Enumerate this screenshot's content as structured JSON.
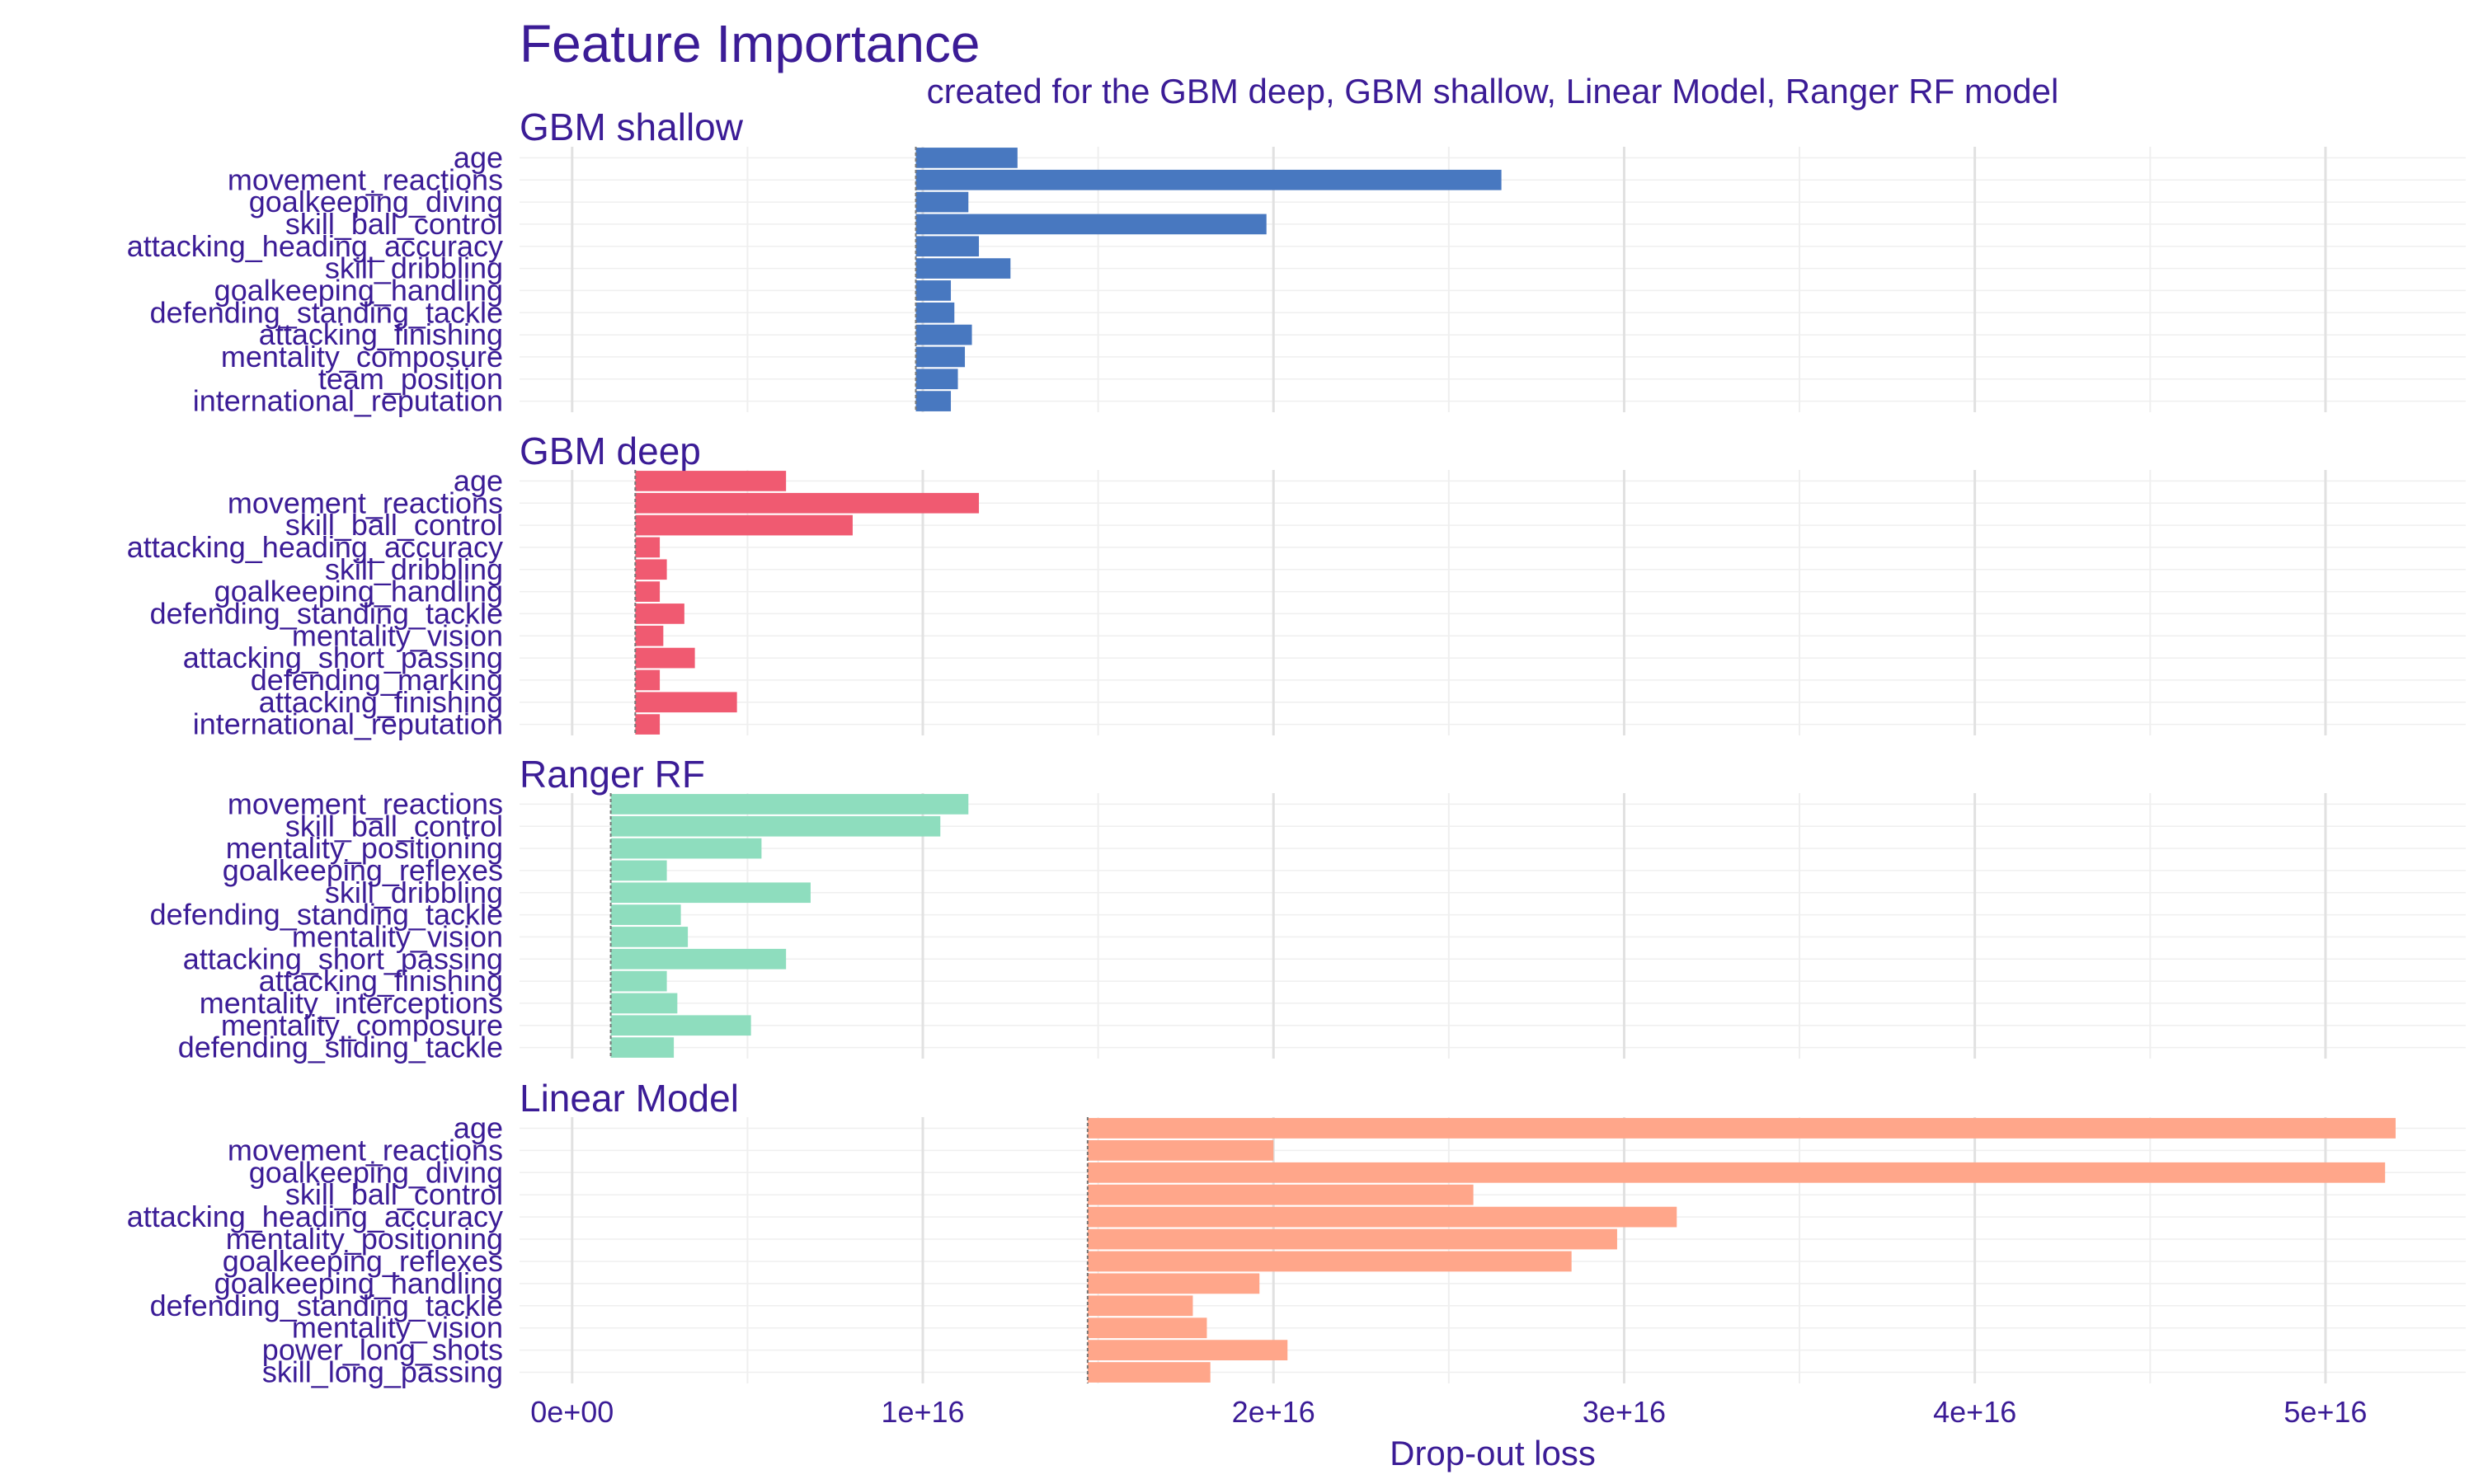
{
  "chart_data": {
    "type": "bar",
    "title": "Feature Importance",
    "subtitle": "created for the GBM deep, GBM shallow, Linear Model, Ranger RF model",
    "xlabel": "Drop-out loss",
    "xlim": [
      -1500000000000000.0,
      5.4e+16
    ],
    "x_ticks": [
      0,
      1e+16,
      2e+16,
      3e+16,
      4e+16,
      5e+16
    ],
    "x_tick_labels": [
      "0e+00",
      "1e+16",
      "2e+16",
      "3e+16",
      "4e+16",
      "5e+16"
    ],
    "grid": true,
    "legend": "none",
    "panels": [
      {
        "name": "GBM shallow",
        "color": "#4878C0",
        "baseline": 9800000000000000.0,
        "features": [
          "age",
          "movement_reactions",
          "goalkeeping_diving",
          "skill_ball_control",
          "attacking_heading_accuracy",
          "skill_dribbling",
          "goalkeeping_handling",
          "defending_standing_tackle",
          "attacking_finishing",
          "mentality_composure",
          "team_position",
          "international_reputation"
        ],
        "values": [
          1.27e+16,
          2.65e+16,
          1.13e+16,
          1.98e+16,
          1.16e+16,
          1.25e+16,
          1.08e+16,
          1.09e+16,
          1.14e+16,
          1.12e+16,
          1.1e+16,
          1.08e+16
        ]
      },
      {
        "name": "GBM deep",
        "color": "#F05A71",
        "baseline": 1800000000000000.0,
        "features": [
          "age",
          "movement_reactions",
          "skill_ball_control",
          "attacking_heading_accuracy",
          "skill_dribbling",
          "goalkeeping_handling",
          "defending_standing_tackle",
          "mentality_vision",
          "attacking_short_passing",
          "defending_marking",
          "attacking_finishing",
          "international_reputation"
        ],
        "values": [
          6100000000000000.0,
          1.16e+16,
          8000000000000000.0,
          2500000000000000.0,
          2700000000000000.0,
          2500000000000000.0,
          3200000000000000.0,
          2600000000000000.0,
          3500000000000000.0,
          2500000000000000.0,
          4700000000000000.0,
          2500000000000000.0
        ]
      },
      {
        "name": "Ranger RF",
        "color": "#8EDDBE",
        "baseline": 1100000000000000.0,
        "features": [
          "movement_reactions",
          "skill_ball_control",
          "mentality_positioning",
          "goalkeeping_reflexes",
          "skill_dribbling",
          "defending_standing_tackle",
          "mentality_vision",
          "attacking_short_passing",
          "attacking_finishing",
          "mentality_interceptions",
          "mentality_composure",
          "defending_sliding_tackle"
        ],
        "values": [
          1.13e+16,
          1.05e+16,
          5400000000000000.0,
          2700000000000000.0,
          6800000000000000.0,
          3100000000000000.0,
          3300000000000000.0,
          6100000000000000.0,
          2700000000000000.0,
          3000000000000000.0,
          5100000000000000.0,
          2900000000000000.0
        ]
      },
      {
        "name": "Linear Model",
        "color": "#FFA68A",
        "baseline": 1.47e+16,
        "features": [
          "age",
          "movement_reactions",
          "goalkeeping_diving",
          "skill_ball_control",
          "attacking_heading_accuracy",
          "mentality_positioning",
          "goalkeeping_reflexes",
          "goalkeeping_handling",
          "defending_standing_tackle",
          "mentality_vision",
          "power_long_shots",
          "skill_long_passing"
        ],
        "values": [
          5.2e+16,
          2e+16,
          5.17e+16,
          2.57e+16,
          3.15e+16,
          2.98e+16,
          2.85e+16,
          1.96e+16,
          1.77e+16,
          1.81e+16,
          2.04e+16,
          1.82e+16
        ]
      }
    ]
  }
}
